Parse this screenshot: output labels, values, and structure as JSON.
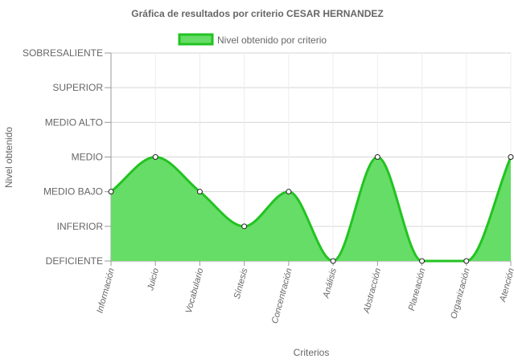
{
  "chart_data": {
    "type": "area",
    "title": "Gráfica de resultados por criterio CESAR HERNANDEZ",
    "xlabel": "Criterios",
    "ylabel": "Nivel obtenido",
    "legend_position": "top",
    "y_levels": [
      "DEFICIENTE",
      "INFERIOR",
      "MEDIO BAJO",
      "MEDIO",
      "MEDIO ALTO",
      "SUPERIOR",
      "SOBRESALIENTE"
    ],
    "ylim": [
      0,
      6
    ],
    "grid": true,
    "categories": [
      "Información",
      "Juicio",
      "Vocabulario",
      "Síntesis",
      "Concentración",
      "Análisis",
      "Abstracción",
      "Planeación",
      "Organización",
      "Atención"
    ],
    "series": [
      {
        "name": "Nivel obtenido por criterio",
        "values": [
          2,
          3,
          2,
          1,
          2,
          0,
          3,
          0,
          0,
          3
        ],
        "fill_color": "#66dd66",
        "line_color": "#22c322"
      }
    ]
  }
}
